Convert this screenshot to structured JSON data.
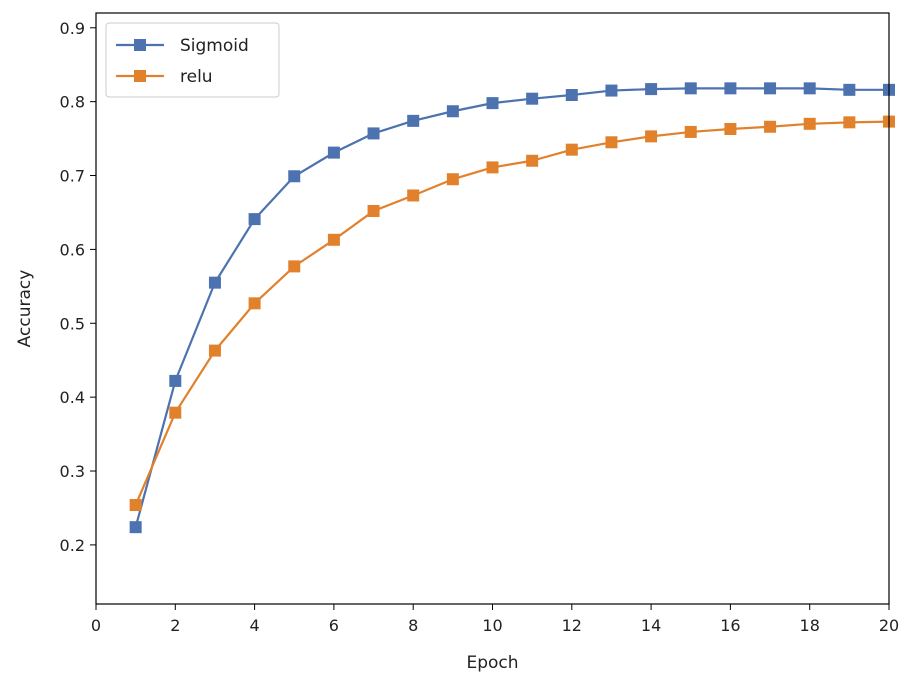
{
  "chart_data": {
    "type": "line",
    "xlabel": "Epoch",
    "ylabel": "Accuracy",
    "xlim": [
      0,
      20
    ],
    "ylim": [
      0.12,
      0.92
    ],
    "xticks": [
      0,
      2,
      4,
      6,
      8,
      10,
      12,
      14,
      16,
      18,
      20
    ],
    "yticks": [
      0.2,
      0.3,
      0.4,
      0.5,
      0.6,
      0.7,
      0.8,
      0.9
    ],
    "grid": false,
    "legend_position": "upper-left",
    "x": [
      1,
      2,
      3,
      4,
      5,
      6,
      7,
      8,
      9,
      10,
      11,
      12,
      13,
      14,
      15,
      16,
      17,
      18,
      19,
      20
    ],
    "series": [
      {
        "name": "Sigmoid",
        "color": "#4c72b0",
        "marker": "square",
        "values": [
          0.224,
          0.422,
          0.555,
          0.641,
          0.699,
          0.731,
          0.757,
          0.774,
          0.787,
          0.798,
          0.804,
          0.809,
          0.815,
          0.817,
          0.818,
          0.818,
          0.818,
          0.818,
          0.816,
          0.816
        ]
      },
      {
        "name": "relu",
        "color": "#e1812c",
        "marker": "square",
        "values": [
          0.254,
          0.379,
          0.463,
          0.527,
          0.577,
          0.613,
          0.652,
          0.673,
          0.695,
          0.711,
          0.72,
          0.735,
          0.745,
          0.753,
          0.759,
          0.763,
          0.766,
          0.77,
          0.772,
          0.773
        ]
      }
    ]
  }
}
